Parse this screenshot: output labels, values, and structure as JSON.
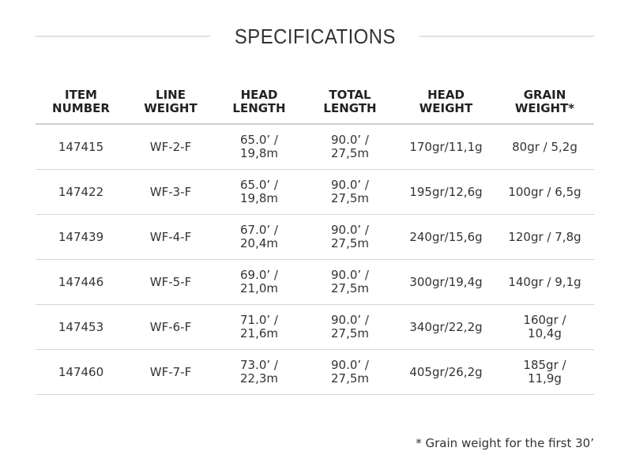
{
  "title": "SPECIFICATIONS",
  "table": {
    "headers": [
      "ITEM\nNUMBER",
      "LINE\nWEIGHT",
      "HEAD\nLENGTH",
      "TOTAL\nLENGTH",
      "HEAD\nWEIGHT",
      "GRAIN\nWEIGHT*"
    ],
    "rows": [
      [
        "147415",
        "WF-2-F",
        "65.0’ /\n19,8m",
        "90.0’ /\n27,5m",
        "170gr/11,1g",
        "80gr / 5,2g"
      ],
      [
        "147422",
        "WF-3-F",
        "65.0’ /\n19,8m",
        "90.0’ /\n27,5m",
        "195gr/12,6g",
        "100gr / 6,5g"
      ],
      [
        "147439",
        "WF-4-F",
        "67.0’ /\n20,4m",
        "90.0’ /\n27,5m",
        "240gr/15,6g",
        "120gr / 7,8g"
      ],
      [
        "147446",
        "WF-5-F",
        "69.0’ /\n21,0m",
        "90.0’ /\n27,5m",
        "300gr/19,4g",
        "140gr / 9,1g"
      ],
      [
        "147453",
        "WF-6-F",
        "71.0’ /\n21,6m",
        "90.0’ /\n27,5m",
        "340gr/22,2g",
        "160gr /\n10,4g"
      ],
      [
        "147460",
        "WF-7-F",
        "73.0’ /\n22,3m",
        "90.0’ /\n27,5m",
        "405gr/26,2g",
        "185gr /\n11,9g"
      ]
    ]
  },
  "footnote": "* Grain weight for the first 30’"
}
